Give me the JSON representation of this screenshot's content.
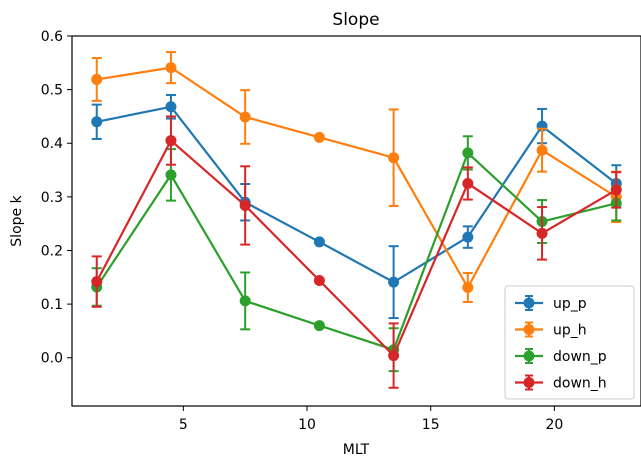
{
  "chart_data": {
    "type": "line",
    "title": "Slope",
    "xlabel": "MLT",
    "ylabel": "Slope k",
    "xlim": [
      0.5,
      23.5
    ],
    "ylim": [
      -0.09,
      0.6
    ],
    "x": [
      1.5,
      4.5,
      7.5,
      10.5,
      13.5,
      16.5,
      19.5,
      22.5
    ],
    "xticks": [
      5,
      10,
      15,
      20
    ],
    "xtick_labels": [
      "5",
      "10",
      "15",
      "20"
    ],
    "yticks": [
      0.0,
      0.1,
      0.2,
      0.3,
      0.4,
      0.5,
      0.6
    ],
    "ytick_labels": [
      "0.0",
      "0.1",
      "0.2",
      "0.3",
      "0.4",
      "0.5",
      "0.6"
    ],
    "grid": false,
    "legend_position": "lower-right",
    "series": [
      {
        "name": "up_p",
        "color": "#1f77b4",
        "values": [
          0.44,
          0.468,
          0.29,
          0.216,
          0.141,
          0.225,
          0.432,
          0.325
        ],
        "errors": [
          0.032,
          0.022,
          0.034,
          0.0,
          0.067,
          0.02,
          0.032,
          0.034
        ]
      },
      {
        "name": "up_h",
        "color": "#ff7f0e",
        "values": [
          0.519,
          0.541,
          0.449,
          0.411,
          0.373,
          0.131,
          0.387,
          0.3
        ],
        "errors": [
          0.04,
          0.029,
          0.05,
          0.0,
          0.09,
          0.027,
          0.04,
          0.047
        ]
      },
      {
        "name": "down_p",
        "color": "#2ca02c",
        "values": [
          0.132,
          0.341,
          0.106,
          0.06,
          0.015,
          0.382,
          0.254,
          0.288
        ],
        "errors": [
          0.035,
          0.048,
          0.053,
          0.0,
          0.04,
          0.031,
          0.04,
          0.032
        ]
      },
      {
        "name": "down_h",
        "color": "#d62728",
        "values": [
          0.142,
          0.405,
          0.284,
          0.144,
          0.004,
          0.325,
          0.232,
          0.313
        ],
        "errors": [
          0.047,
          0.045,
          0.073,
          0.0,
          0.06,
          0.03,
          0.049,
          0.033
        ]
      }
    ]
  }
}
